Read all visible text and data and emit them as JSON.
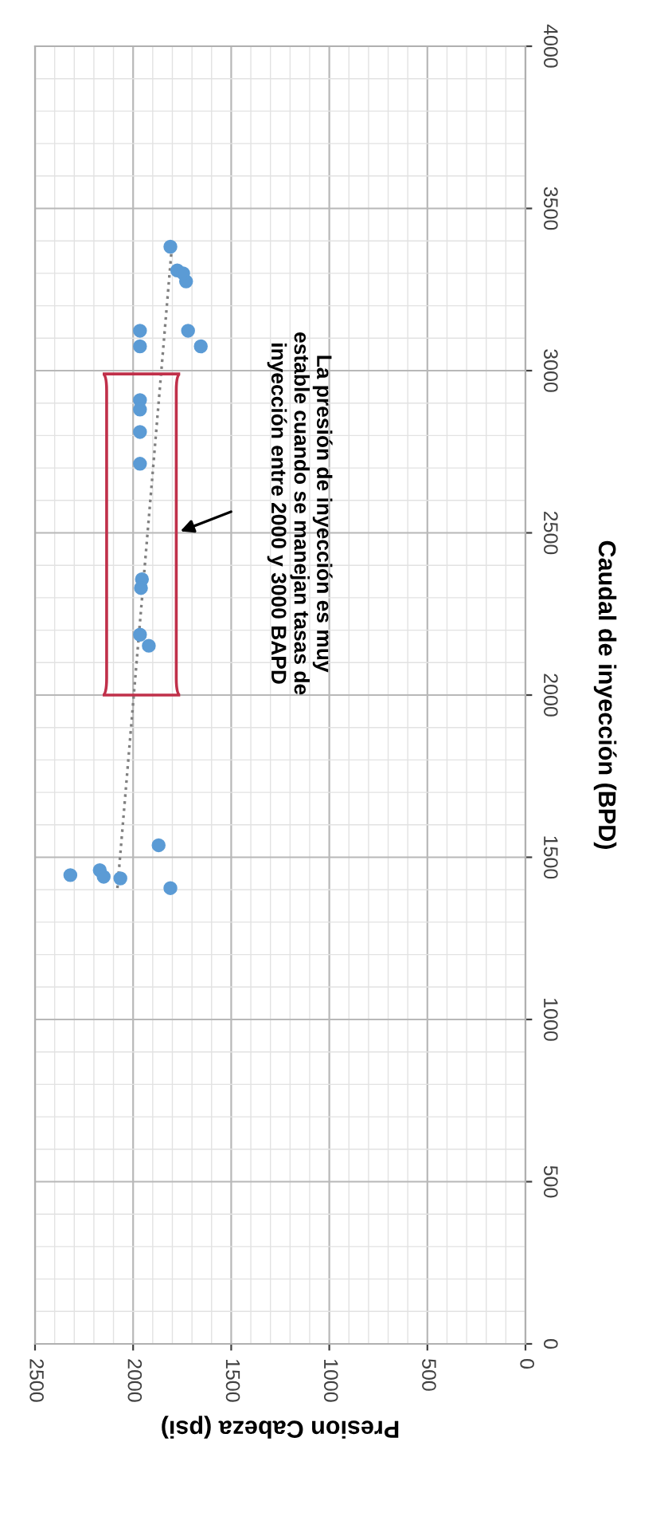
{
  "chart_data": {
    "type": "scatter",
    "xlabel": "Presion Cabeza (psi)",
    "ylabel": "Caudal de inyección (BPD)",
    "xlim": [
      2500,
      0
    ],
    "xticks": [
      2500,
      2000,
      1500,
      1000,
      500,
      0
    ],
    "ylim": [
      0,
      4000
    ],
    "yticks": [
      0,
      500,
      1000,
      1500,
      2000,
      2500,
      3000,
      3500,
      4000
    ],
    "grid": true,
    "marker": "circle",
    "series": [
      {
        "color": "#5b9bd5",
        "x": [
          2320,
          2170,
          2150,
          2065,
          1870,
          1810,
          1920,
          1965,
          1955,
          1960,
          1965,
          1965,
          1965,
          1965,
          1965,
          1965,
          1720,
          1655,
          1810,
          1775,
          1730,
          1745
        ],
        "values": [
          1445,
          1460,
          1440,
          1435,
          1537,
          1405,
          2152,
          2186,
          2357,
          2330,
          2713,
          2811,
          2909,
          2880,
          3075,
          3123,
          3123,
          3075,
          3382,
          3309,
          3275,
          3300
        ]
      },
      {
        "type": "line",
        "color": "#808080",
        "line_style": "dotted",
        "marker": "none",
        "x": [
          2080,
          1800
        ],
        "values": [
          1405,
          3400
        ]
      }
    ],
    "annotations": [
      "La presión de inyección es muy\nestable cuando se manejan tasas de\ninyección entre 2000 y 3000 BAPD"
    ]
  }
}
